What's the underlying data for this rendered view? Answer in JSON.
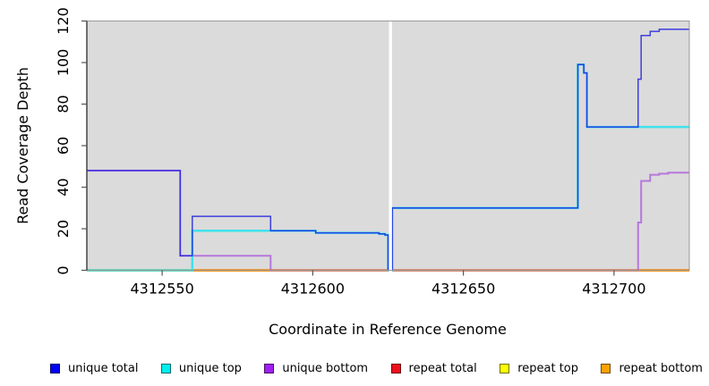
{
  "chart_data": {
    "type": "line",
    "step": true,
    "title": "",
    "xlabel": "Coordinate in Reference Genome",
    "ylabel": "Read Coverage Depth",
    "xlim": [
      4312525,
      4312725
    ],
    "ylim": [
      0,
      120
    ],
    "x_ticks": [
      4312550,
      4312600,
      4312650,
      4312700
    ],
    "y_ticks": [
      0,
      20,
      40,
      60,
      80,
      100,
      120
    ],
    "plot_background": "#DBDBDB",
    "grid": false,
    "legend_position": "bottom",
    "gap_region": {
      "x_start": 4312625.3,
      "x_end": 4312626.3,
      "color": "#FFFFFF"
    },
    "series": [
      {
        "name": "repeat top",
        "line_color": "#F2E72A",
        "width": 3.0,
        "opacity": 1,
        "points": [
          [
            4312525,
            0
          ]
        ]
      },
      {
        "name": "repeat total",
        "line_color": "#DC2B50",
        "width": 2.2,
        "opacity": 1,
        "points": [
          [
            4312525,
            0
          ]
        ]
      },
      {
        "name": "repeat bottom",
        "line_color": "#FF9418",
        "width": 1.7,
        "opacity": 1,
        "points": [
          [
            4312525,
            0
          ]
        ]
      },
      {
        "name": "unique bottom",
        "line_color": "#AC5FDC",
        "width": 2.0,
        "opacity": 0.8,
        "points": [
          [
            4312525,
            48
          ],
          [
            4312556,
            7
          ],
          [
            4312586,
            0
          ],
          [
            4312708,
            23
          ],
          [
            4312709,
            43
          ],
          [
            4312712,
            46
          ],
          [
            4312715,
            46.5
          ],
          [
            4312718,
            47
          ]
        ]
      },
      {
        "name": "unique top",
        "line_color": "#3EE2EC",
        "width": 2.5,
        "opacity": 1,
        "points": [
          [
            4312525,
            0
          ],
          [
            4312560,
            19
          ],
          [
            4312601,
            18
          ],
          [
            4312622,
            17.5
          ],
          [
            4312624,
            17
          ],
          [
            4312625,
            0
          ],
          [
            4312626.4,
            30
          ],
          [
            4312688,
            99
          ],
          [
            4312690,
            95
          ],
          [
            4312691,
            69
          ]
        ]
      },
      {
        "name": "unique total",
        "line_color": "#2222E0",
        "width": 1.5,
        "opacity": 0.85,
        "points": [
          [
            4312525,
            48
          ],
          [
            4312556,
            7
          ],
          [
            4312560,
            26
          ],
          [
            4312586,
            19
          ],
          [
            4312601,
            18
          ],
          [
            4312622,
            17.5
          ],
          [
            4312624,
            17
          ],
          [
            4312625,
            0
          ],
          [
            4312626.4,
            30
          ],
          [
            4312688,
            99
          ],
          [
            4312690,
            95
          ],
          [
            4312691,
            69
          ],
          [
            4312708,
            92
          ],
          [
            4312709,
            113
          ],
          [
            4312712,
            115
          ],
          [
            4312715,
            116
          ]
        ]
      }
    ]
  },
  "legend": {
    "items": [
      {
        "label": "unique total",
        "color": "#0000F5"
      },
      {
        "label": "unique top",
        "color": "#00EEEE"
      },
      {
        "label": "unique bottom",
        "color": "#A020F0"
      },
      {
        "label": "repeat total",
        "color": "#EE0E1C"
      },
      {
        "label": "repeat top",
        "color": "#FFFF00"
      },
      {
        "label": "repeat bottom",
        "color": "#FFA000"
      }
    ]
  }
}
